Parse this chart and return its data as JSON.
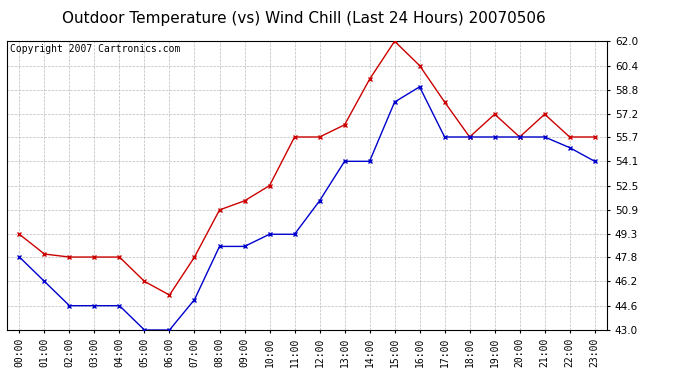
{
  "title": "Outdoor Temperature (vs) Wind Chill (Last 24 Hours) 20070506",
  "copyright": "Copyright 2007 Cartronics.com",
  "hours": [
    "00:00",
    "01:00",
    "02:00",
    "03:00",
    "04:00",
    "05:00",
    "06:00",
    "07:00",
    "08:00",
    "09:00",
    "10:00",
    "11:00",
    "12:00",
    "13:00",
    "14:00",
    "15:00",
    "16:00",
    "17:00",
    "18:00",
    "19:00",
    "20:00",
    "21:00",
    "22:00",
    "23:00"
  ],
  "temp": [
    47.8,
    46.2,
    44.6,
    44.6,
    44.6,
    43.0,
    43.0,
    45.0,
    48.5,
    48.5,
    49.3,
    49.3,
    51.5,
    54.1,
    54.1,
    58.0,
    59.0,
    55.7,
    55.7,
    55.7,
    55.7,
    55.7,
    55.0,
    54.1
  ],
  "wind_chill": [
    49.3,
    48.0,
    47.8,
    47.8,
    47.8,
    46.2,
    45.3,
    47.8,
    50.9,
    51.5,
    52.5,
    55.7,
    55.7,
    56.5,
    59.5,
    62.0,
    60.4,
    58.0,
    55.7,
    57.2,
    55.7,
    57.2,
    55.7,
    55.7
  ],
  "ylim": [
    43.0,
    62.0
  ],
  "yticks": [
    43.0,
    44.6,
    46.2,
    47.8,
    49.3,
    50.9,
    52.5,
    54.1,
    55.7,
    57.2,
    58.8,
    60.4,
    62.0
  ],
  "temp_color": "#0000cc",
  "wind_chill_color": "#cc0000",
  "bg_color": "#ffffff",
  "grid_color": "#bbbbbb",
  "title_fontsize": 11,
  "copyright_fontsize": 7
}
